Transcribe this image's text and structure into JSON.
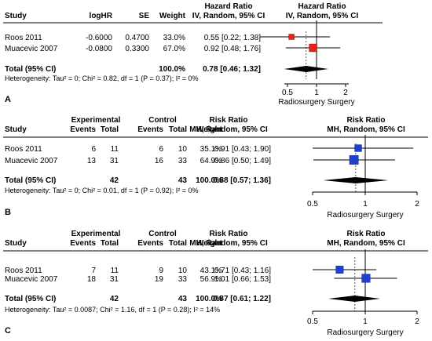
{
  "chart_data": [
    {
      "type": "forest",
      "panel_label": "A",
      "headers": {
        "study": "Study",
        "loghr": "logHR",
        "se": "SE",
        "weight": "Weight",
        "effect_title": "Hazard Ratio",
        "effect_sub": "IV, Random, 95% CI",
        "plot_title": "Hazard Ratio",
        "plot_sub": "IV, Random, 95% CI"
      },
      "rows": [
        {
          "study": "Roos 2011",
          "loghr": "-0.6000",
          "se": "0.4700",
          "weight": "33.0%",
          "estimate": 0.55,
          "ci": [
            0.22,
            1.38
          ],
          "ci_text": "0.55 [0.22; 1.38]"
        },
        {
          "study": "Muacevic 2007",
          "loghr": "-0.0800",
          "se": "0.3300",
          "weight": "67.0%",
          "estimate": 0.92,
          "ci": [
            0.48,
            1.76
          ],
          "ci_text": "0.92 [0.48; 1.76]"
        }
      ],
      "total": {
        "label": "Total (95% CI)",
        "weight": "100.0%",
        "estimate": 0.78,
        "ci": [
          0.46,
          1.32
        ],
        "ci_text": "0.78 [0.46; 1.32]"
      },
      "heterogeneity": "Heterogeneity: Tau² = 0; Chi² = 0.82, df = 1 (P = 0.37); I² = 0%",
      "axis": {
        "ticks": [
          0.5,
          1,
          2
        ],
        "tick_labels": [
          "0.5",
          "1",
          "2"
        ],
        "range": [
          0.4,
          2.4
        ],
        "scale": "log",
        "label": "Radiosurgery Surgery"
      },
      "marker_color": "#e8231a"
    },
    {
      "type": "forest",
      "panel_label": "B",
      "headers": {
        "study": "Study",
        "group1": "Experimental",
        "group2": "Control",
        "events": "Events",
        "total": "Total",
        "weight": "Weight",
        "effect_title": "Risk Ratio",
        "effect_sub": "MH, Random, 95% CI",
        "plot_title": "Risk Ratio",
        "plot_sub": "MH, Random, 95% CI"
      },
      "rows": [
        {
          "study": "Roos 2011",
          "e_events": "6",
          "e_total": "11",
          "c_events": "6",
          "c_total": "10",
          "weight": "35.1%",
          "estimate": 0.91,
          "ci": [
            0.43,
            1.9
          ],
          "ci_text": "0.91 [0.43; 1.90]"
        },
        {
          "study": "Muacevic 2007",
          "e_events": "13",
          "e_total": "31",
          "c_events": "16",
          "c_total": "33",
          "weight": "64.9%",
          "estimate": 0.86,
          "ci": [
            0.5,
            1.49
          ],
          "ci_text": "0.86 [0.50; 1.49]"
        }
      ],
      "total": {
        "label": "Total (95% CI)",
        "e_total": "42",
        "c_total": "43",
        "weight": "100.0%",
        "estimate": 0.88,
        "ci": [
          0.57,
          1.36
        ],
        "ci_text": "0.88 [0.57; 1.36]"
      },
      "heterogeneity": "Heterogeneity: Tau² = 0; Chi² = 0.01, df = 1 (P = 0.92); I² = 0%",
      "axis": {
        "ticks": [
          0.5,
          1,
          2
        ],
        "tick_labels": [
          "0.5",
          "1",
          "2"
        ],
        "range": [
          0.5,
          2
        ],
        "scale": "log",
        "label": "Radiosurgery Surgery"
      },
      "marker_color": "#1f3fd0"
    },
    {
      "type": "forest",
      "panel_label": "C",
      "headers": {
        "study": "Study",
        "group1": "Experimental",
        "group2": "Control",
        "events": "Events",
        "total": "Total",
        "weight": "Weight",
        "effect_title": "Risk Ratio",
        "effect_sub": "MH, Random, 95% CI",
        "plot_title": "Risk Ratio",
        "plot_sub": "MH, Random, 95% CI"
      },
      "rows": [
        {
          "study": "Roos 2011",
          "e_events": "7",
          "e_total": "11",
          "c_events": "9",
          "c_total": "10",
          "weight": "43.1%",
          "estimate": 0.71,
          "ci": [
            0.43,
            1.16
          ],
          "ci_text": "0.71 [0.43; 1.16]"
        },
        {
          "study": "Muacevic 2007",
          "e_events": "18",
          "e_total": "31",
          "c_events": "19",
          "c_total": "33",
          "weight": "56.9%",
          "estimate": 1.01,
          "ci": [
            0.66,
            1.53
          ],
          "ci_text": "1.01 [0.66; 1.53]"
        }
      ],
      "total": {
        "label": "Total (95% CI)",
        "e_total": "42",
        "c_total": "43",
        "weight": "100.0%",
        "estimate": 0.87,
        "ci": [
          0.61,
          1.22
        ],
        "ci_text": "0.87 [0.61; 1.22]"
      },
      "heterogeneity": "Heterogeneity: Tau² = 0.0087; Chi² = 1.16, df = 1 (P = 0.28); I² = 14%",
      "axis": {
        "ticks": [
          0.5,
          1,
          2
        ],
        "tick_labels": [
          "0.5",
          "1",
          "2"
        ],
        "range": [
          0.5,
          2
        ],
        "scale": "log",
        "label": "Radiosurgery Surgery"
      },
      "marker_color": "#1f3fd0"
    }
  ]
}
